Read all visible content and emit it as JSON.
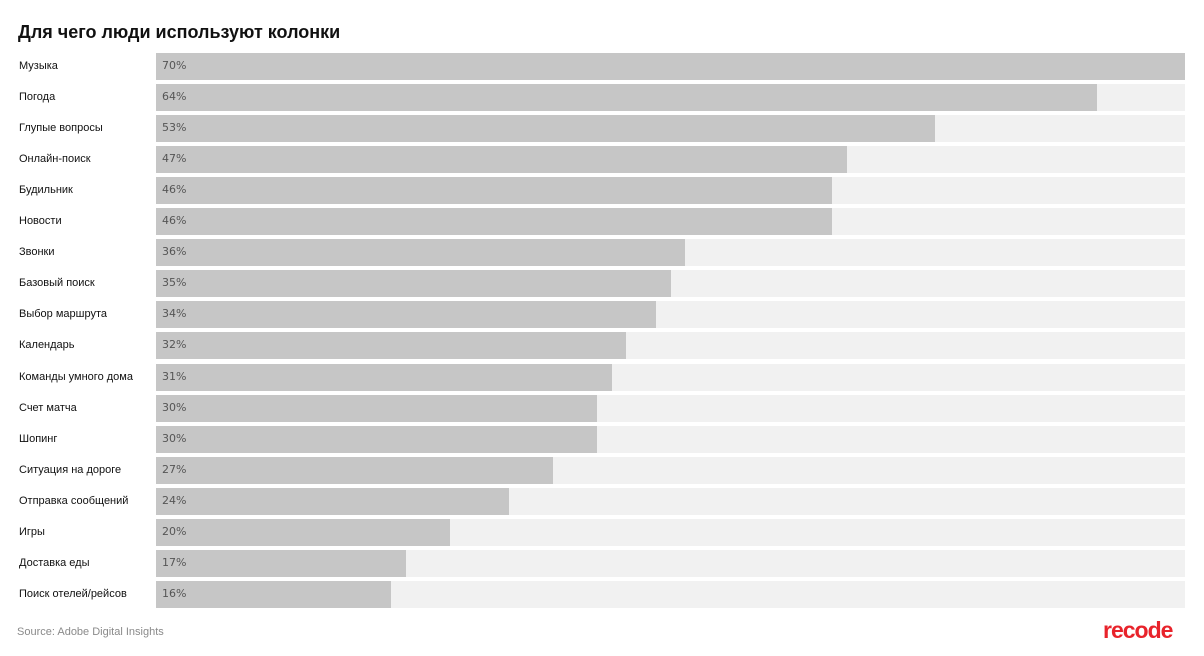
{
  "title": "Для чего люди используют колонки",
  "source": "Source: Adobe Digital Insights",
  "logo": "recode",
  "colors": {
    "bar": "#c6c6c6",
    "track": "#f1f1f1",
    "logo": "#e8232b"
  },
  "chart_data": {
    "type": "bar",
    "orientation": "horizontal",
    "title": "Для чего люди используют колонки",
    "xlim": [
      0,
      70
    ],
    "grid": false,
    "categories": [
      "Музыка",
      "Погода",
      "Глупые вопросы",
      "Онлайн-поиск",
      "Будильник",
      "Новости",
      "Звонки",
      "Базовый поиск",
      "Выбор маршрута",
      "Календарь",
      "Команды умного дома",
      "Счет матча",
      "Шопинг",
      "Ситуация на дороге",
      "Отправка сообщений",
      "Игры",
      "Доставка еды",
      "Поиск отелей/рейсов"
    ],
    "values": [
      70,
      64,
      53,
      47,
      46,
      46,
      36,
      35,
      34,
      32,
      31,
      30,
      30,
      27,
      24,
      20,
      17,
      16
    ],
    "value_labels": [
      "70%",
      "64%",
      "53%",
      "47%",
      "46%",
      "46%",
      "36%",
      "35%",
      "34%",
      "32%",
      "31%",
      "30%",
      "30%",
      "27%",
      "24%",
      "20%",
      "17%",
      "16%"
    ]
  }
}
